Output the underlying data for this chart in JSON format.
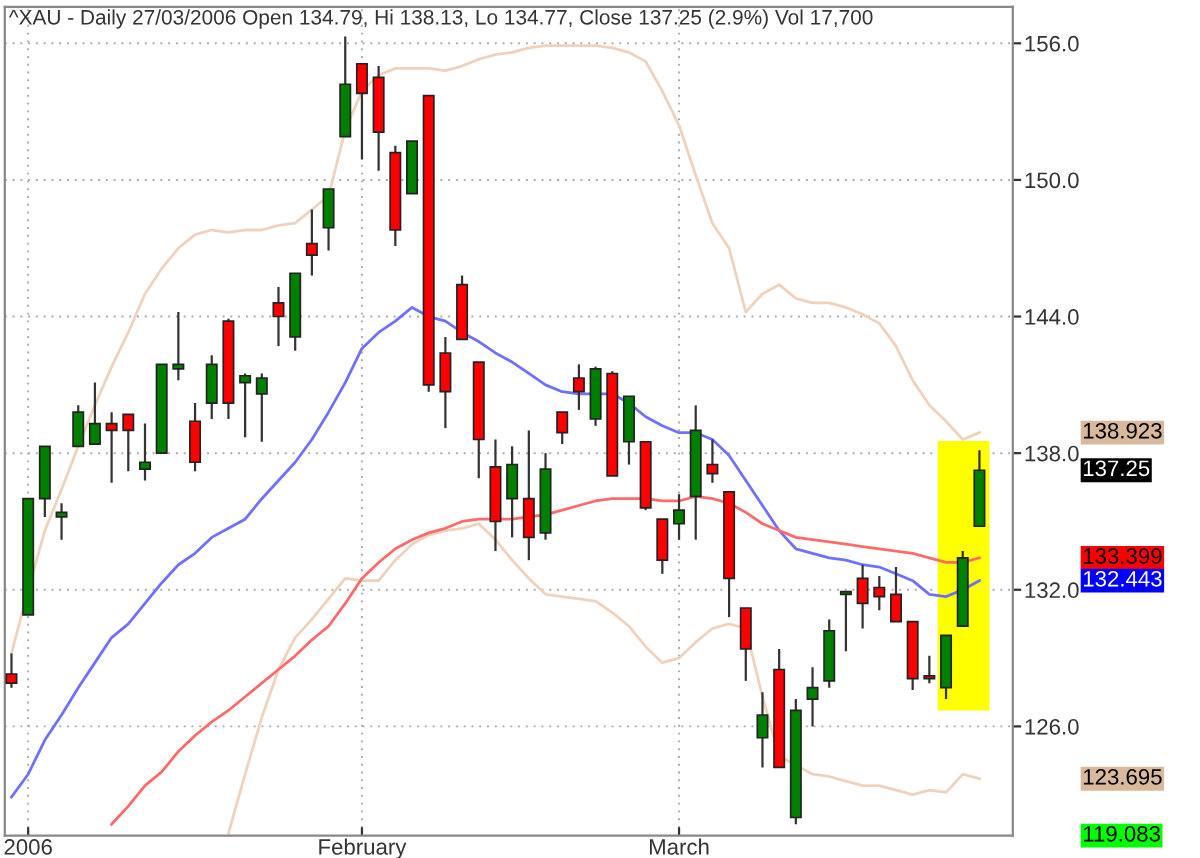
{
  "chart_data": {
    "type": "candlestick",
    "title": "^XAU - Daily 27/03/2006 Open 134.79, Hi 138.13, Lo 134.77, Close 137.25 (2.9%) Vol 17,700",
    "categories": [
      null,
      "2006",
      null,
      null,
      null,
      null,
      null,
      null,
      null,
      null,
      null,
      null,
      null,
      null,
      null,
      null,
      null,
      null,
      null,
      null,
      null,
      "February",
      null,
      null,
      null,
      null,
      null,
      null,
      null,
      null,
      null,
      null,
      null,
      null,
      null,
      null,
      null,
      null,
      null,
      null,
      "March",
      null,
      null,
      null,
      null,
      null,
      null,
      null,
      null,
      null,
      null,
      null,
      null,
      null,
      null,
      null,
      null,
      null,
      null
    ],
    "ohlc": [
      [
        128.3,
        129.2,
        127.7,
        127.9
      ],
      [
        130.9,
        136.0,
        130.9,
        136.0
      ],
      [
        136.0,
        138.3,
        135.2,
        138.3
      ],
      [
        135.2,
        135.8,
        134.2,
        135.4
      ],
      [
        138.3,
        140.1,
        138.3,
        139.8
      ],
      [
        138.4,
        141.1,
        138.4,
        139.3
      ],
      [
        139.3,
        139.8,
        136.7,
        139.0
      ],
      [
        139.7,
        139.7,
        137.2,
        139.0
      ],
      [
        137.3,
        139.3,
        136.8,
        137.6
      ],
      [
        138.0,
        141.9,
        138.0,
        141.9
      ],
      [
        141.7,
        144.2,
        141.2,
        141.9
      ],
      [
        139.4,
        140.2,
        137.2,
        137.6
      ],
      [
        140.2,
        142.3,
        139.5,
        141.9
      ],
      [
        143.8,
        143.9,
        139.5,
        140.2
      ],
      [
        141.1,
        141.5,
        138.7,
        141.4
      ],
      [
        140.6,
        141.5,
        138.5,
        141.3
      ],
      [
        144.6,
        145.3,
        142.7,
        144.0
      ],
      [
        143.1,
        145.9,
        142.5,
        145.9
      ],
      [
        147.2,
        148.7,
        145.8,
        146.7
      ],
      [
        147.9,
        149.6,
        146.9,
        149.6
      ],
      [
        151.9,
        156.3,
        151.9,
        154.2
      ],
      [
        155.1,
        155.1,
        150.9,
        153.8
      ],
      [
        154.5,
        155.0,
        150.4,
        152.1
      ],
      [
        151.2,
        151.5,
        147.1,
        147.8
      ],
      [
        149.4,
        151.7,
        149.4,
        151.7
      ],
      [
        153.7,
        153.7,
        140.7,
        141.0
      ],
      [
        142.4,
        143.1,
        139.1,
        140.7
      ],
      [
        145.4,
        145.8,
        143.0,
        143.0
      ],
      [
        142.0,
        142.0,
        136.9,
        138.6
      ],
      [
        137.4,
        138.6,
        133.7,
        135.0
      ],
      [
        136.0,
        138.3,
        134.3,
        137.5
      ],
      [
        136.0,
        139.0,
        133.3,
        134.3
      ],
      [
        134.5,
        138.0,
        134.2,
        137.3
      ],
      [
        139.8,
        139.8,
        138.4,
        138.9
      ],
      [
        141.3,
        141.9,
        139.9,
        140.7
      ],
      [
        139.5,
        141.8,
        139.2,
        141.7
      ],
      [
        141.5,
        141.6,
        137.0,
        137.0
      ],
      [
        138.5,
        140.5,
        137.5,
        140.5
      ],
      [
        138.5,
        138.5,
        135.5,
        135.6
      ],
      [
        135.1,
        135.1,
        132.7,
        133.3
      ],
      [
        134.9,
        136.2,
        134.2,
        135.5
      ],
      [
        136.1,
        140.1,
        134.2,
        139.0
      ],
      [
        137.5,
        138.6,
        136.7,
        137.1
      ],
      [
        136.3,
        136.3,
        130.8,
        132.5
      ],
      [
        131.2,
        131.2,
        128.0,
        129.4
      ],
      [
        125.5,
        127.5,
        124.2,
        126.5
      ],
      [
        128.5,
        129.4,
        124.2,
        124.2
      ],
      [
        122.0,
        127.2,
        121.7,
        126.7
      ],
      [
        127.2,
        128.6,
        126.0,
        127.7
      ],
      [
        128.0,
        130.7,
        127.7,
        130.2
      ],
      [
        131.8,
        131.9,
        129.3,
        131.9
      ],
      [
        132.5,
        133.1,
        130.3,
        131.4
      ],
      [
        132.1,
        132.6,
        131.1,
        131.7
      ],
      [
        131.8,
        133.0,
        130.6,
        130.6
      ],
      [
        130.6,
        130.6,
        127.6,
        128.1
      ],
      [
        128.2,
        129.1,
        127.9,
        128.1
      ],
      [
        127.7,
        130.0,
        127.2,
        130.0
      ],
      [
        130.4,
        133.7,
        130.4,
        133.4
      ],
      [
        134.79,
        138.13,
        134.77,
        137.25
      ]
    ],
    "series": [
      {
        "type": "line",
        "color": "#f0d2bc",
        "values": [
          129.2,
          132.0,
          134.6,
          136.4,
          138.3,
          140.1,
          141.8,
          143.3,
          145.0,
          146.1,
          147.0,
          147.6,
          147.8,
          147.7,
          147.8,
          147.8,
          148.0,
          148.1,
          148.7,
          149.3,
          152.2,
          153.9,
          154.6,
          154.9,
          154.9,
          154.9,
          154.8,
          155.0,
          155.3,
          155.5,
          155.6,
          155.8,
          155.9,
          155.9,
          155.9,
          155.9,
          155.8,
          155.6,
          155.2,
          153.9,
          152.4,
          150.2,
          148.1,
          147.0,
          144.2,
          145.0,
          145.4,
          144.8,
          144.6,
          144.6,
          144.4,
          144.1,
          143.7,
          142.7,
          141.2,
          140.1,
          139.4,
          138.6,
          138.9
        ]
      },
      {
        "type": "line",
        "color": "#f0d2bc",
        "values": [
          null,
          null,
          null,
          null,
          null,
          null,
          null,
          null,
          null,
          null,
          null,
          null,
          null,
          121.3,
          123.9,
          126.4,
          128.5,
          129.9,
          130.7,
          131.6,
          132.5,
          132.4,
          132.4,
          133.3,
          134.0,
          134.4,
          134.6,
          134.7,
          134.9,
          134.2,
          133.3,
          132.5,
          131.8,
          131.7,
          131.6,
          131.5,
          131.0,
          130.4,
          129.5,
          128.8,
          129.0,
          129.7,
          130.3,
          130.5,
          130.3,
          127.3,
          124.7,
          124.3,
          123.9,
          123.8,
          123.6,
          123.4,
          123.4,
          123.2,
          123.0,
          123.2,
          123.1,
          123.9,
          123.7
        ]
      },
      {
        "type": "line",
        "color": "#7070ff",
        "values": [
          122.9,
          123.9,
          125.4,
          126.5,
          127.7,
          128.8,
          129.9,
          130.5,
          131.4,
          132.3,
          133.1,
          133.6,
          134.3,
          134.7,
          135.1,
          136.0,
          136.8,
          137.6,
          138.6,
          139.8,
          141.1,
          142.6,
          143.3,
          143.8,
          144.4,
          144.0,
          143.8,
          143.3,
          142.9,
          142.4,
          142.0,
          141.5,
          141.0,
          140.7,
          140.6,
          140.6,
          140.6,
          140.2,
          139.6,
          139.2,
          138.9,
          138.9,
          138.6,
          137.9,
          136.8,
          135.7,
          134.6,
          133.8,
          133.6,
          133.4,
          133.3,
          133.1,
          133.0,
          132.7,
          132.4,
          131.8,
          131.7,
          132.0,
          132.4
        ]
      },
      {
        "type": "line",
        "color": "#ff6a6a",
        "values": [
          null,
          null,
          null,
          null,
          null,
          null,
          121.7,
          122.5,
          123.4,
          124.0,
          124.9,
          125.6,
          126.2,
          126.7,
          127.3,
          127.9,
          128.5,
          129.1,
          129.8,
          130.4,
          131.4,
          132.5,
          133.2,
          133.8,
          134.2,
          134.5,
          134.7,
          135.0,
          135.1,
          135.1,
          135.1,
          135.2,
          135.3,
          135.5,
          135.7,
          135.9,
          136.0,
          136.0,
          136.0,
          135.9,
          135.9,
          136.1,
          136.0,
          135.8,
          135.4,
          134.9,
          134.6,
          134.3,
          134.2,
          134.1,
          134.0,
          133.9,
          133.8,
          133.7,
          133.6,
          133.4,
          133.2,
          133.2,
          133.4
        ]
      }
    ],
    "ylim": [
      121.2,
      157.6
    ],
    "yticks": [
      {
        "value": 126,
        "label": "126.0"
      },
      {
        "value": 132,
        "label": "132.0"
      },
      {
        "value": 138,
        "label": "138.0"
      },
      {
        "value": 144,
        "label": "144.0"
      },
      {
        "value": 150,
        "label": "150.0"
      },
      {
        "value": 156,
        "label": "156.0"
      }
    ],
    "grid": true,
    "annotations": [
      "138.923",
      "137.25",
      "133.399",
      "132.443",
      "123.695",
      "119.083"
    ]
  }
}
